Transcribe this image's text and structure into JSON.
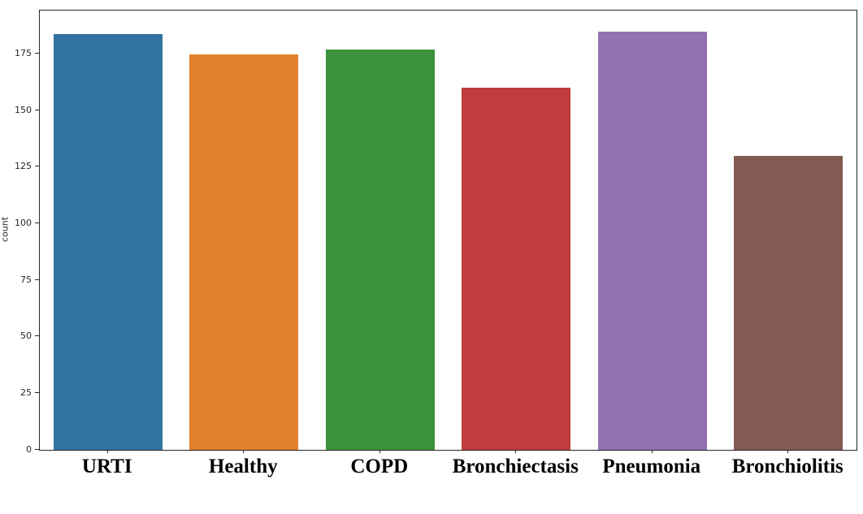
{
  "chart_data": {
    "type": "bar",
    "title": "",
    "xlabel": "",
    "ylabel": "count",
    "categories": [
      "URTI",
      "Healthy",
      "COPD",
      "Bronchiectasis",
      "Pneumonia",
      "Bronchiolitis"
    ],
    "values": [
      184,
      175,
      177,
      160,
      185,
      130
    ],
    "bar_colors": [
      "#3274A1",
      "#E1812C",
      "#3A923A",
      "#C03D3E",
      "#9372B2",
      "#845B53"
    ],
    "yticks": [
      0,
      25,
      50,
      75,
      100,
      125,
      150,
      175
    ],
    "ylim": [
      0,
      194.25
    ],
    "grid": false,
    "legend_position": "none",
    "background_color": "#ffffff",
    "spine_color": "#262626"
  }
}
